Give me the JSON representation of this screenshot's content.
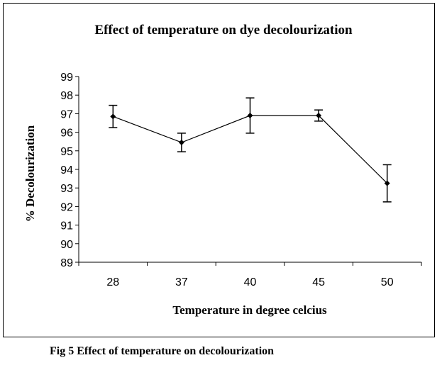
{
  "chart_data": {
    "type": "line",
    "title": "Effect of temperature on dye decolourization",
    "xlabel": "Temperature in degree celcius",
    "ylabel": "% Decolourization",
    "categories": [
      "28",
      "37",
      "40",
      "45",
      "50"
    ],
    "series": [
      {
        "name": "% Decolourization",
        "values": [
          96.85,
          95.45,
          96.9,
          96.9,
          93.25
        ],
        "error": [
          0.6,
          0.5,
          0.95,
          0.3,
          1.0
        ]
      }
    ],
    "ylim": [
      89,
      99
    ],
    "yticks": [
      "89",
      "90",
      "91",
      "92",
      "93",
      "94",
      "95",
      "96",
      "97",
      "98",
      "99"
    ],
    "line_color": "#000000",
    "grid": false
  },
  "caption": "Fig 5 Effect of temperature on decolourization"
}
